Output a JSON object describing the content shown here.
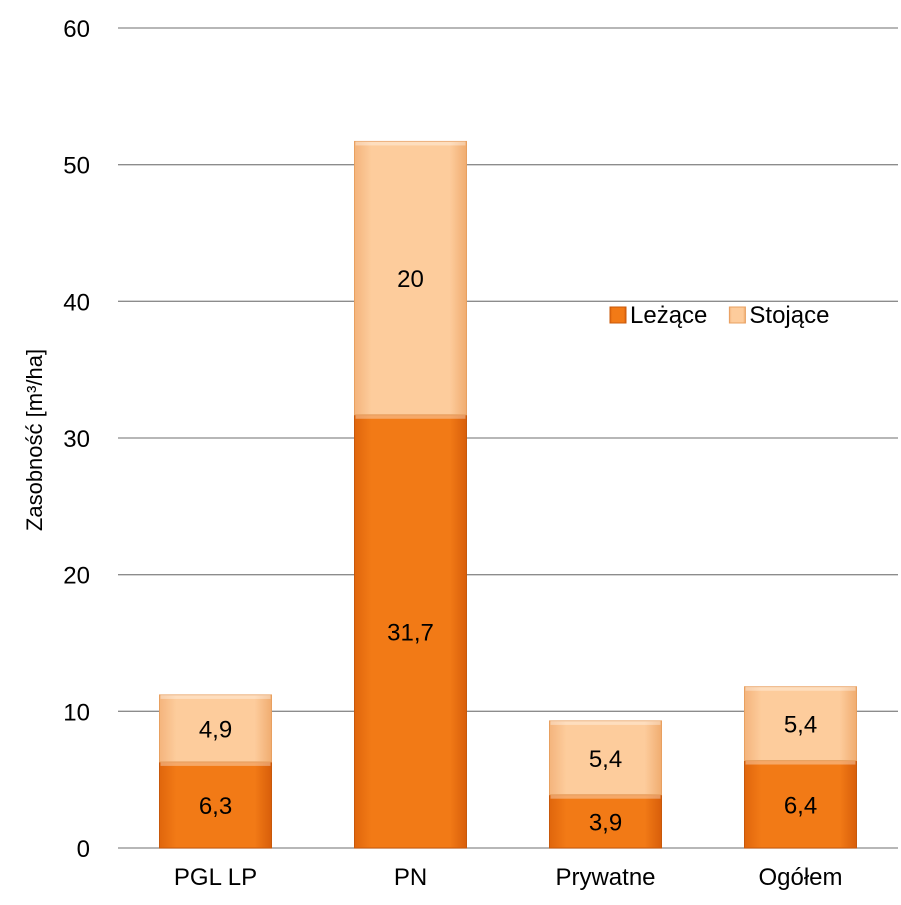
{
  "chart_data": {
    "type": "bar",
    "stacked": true,
    "categories": [
      "PGL LP",
      "PN",
      "Prywatne",
      "Ogółem"
    ],
    "series": [
      {
        "name": "Leżące",
        "values": [
          6.3,
          31.7,
          3.9,
          6.4
        ],
        "labels": [
          "6,3",
          "31,7",
          "3,9",
          "6,4"
        ],
        "color": "#f07818"
      },
      {
        "name": "Stojące",
        "values": [
          4.9,
          20,
          5.4,
          5.4
        ],
        "labels": [
          "4,9",
          "20",
          "5,4",
          "5,4"
        ],
        "color": "#fcc898"
      }
    ],
    "ylabel": "Zasobność [m³/ha]",
    "ylim": [
      0,
      60
    ],
    "yticks": [
      0,
      10,
      20,
      30,
      40,
      50,
      60
    ],
    "grid": true,
    "legend": "right-middle"
  }
}
